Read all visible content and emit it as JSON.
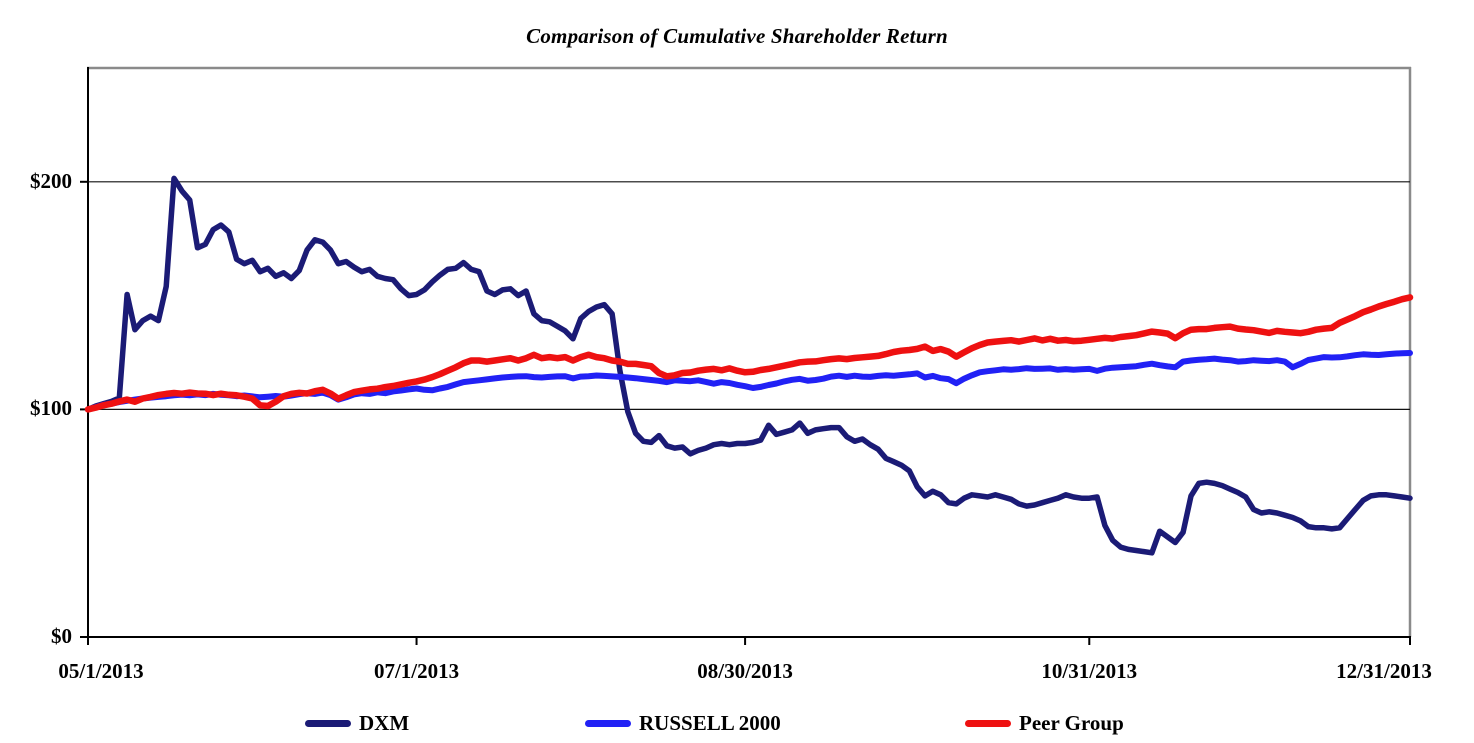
{
  "chart_data": {
    "type": "line",
    "title": "Comparison of Cumulative Shareholder Return",
    "xlabel": "",
    "ylabel": "",
    "grid": "horizontal-only",
    "legend_position": "bottom",
    "y_axis": {
      "min": 0,
      "max": 250,
      "gridlines": [
        100,
        200
      ],
      "ticks": [
        {
          "value": 200,
          "label": "$200"
        },
        {
          "value": 100,
          "label": "$100"
        },
        {
          "value": 0,
          "label": "$0"
        }
      ]
    },
    "x_axis": {
      "unit": "trading-days",
      "first_day": "05/1/2013",
      "last_day": "12/31/2013",
      "total_points": 170,
      "ticks": [
        {
          "day": 0,
          "label": "05/1/2013"
        },
        {
          "day": 42,
          "label": "07/1/2013"
        },
        {
          "day": 84,
          "label": "08/30/2013"
        },
        {
          "day": 128,
          "label": "10/31/2013"
        },
        {
          "day": 169,
          "label": "12/31/2013"
        }
      ]
    },
    "series": [
      {
        "name": "DXM",
        "color": "#1b1b76",
        "values": [
          100,
          101.5,
          102.5,
          103.5,
          105,
          150.5,
          135,
          139,
          141,
          139,
          154,
          201.5,
          196,
          192,
          171,
          172.5,
          179,
          181,
          178,
          166,
          164,
          165.5,
          160.5,
          162,
          158.5,
          160,
          157.5,
          161,
          170,
          174.5,
          173.5,
          170,
          164,
          165,
          162.5,
          160.5,
          161.5,
          158.5,
          157.5,
          157,
          153,
          150,
          150.5,
          152.5,
          156,
          159,
          161.5,
          162,
          164.5,
          161.5,
          160.5,
          152,
          150.5,
          152.5,
          153,
          150,
          152,
          142,
          139,
          138.5,
          136.5,
          134.5,
          131,
          140,
          143,
          145,
          146,
          142,
          117,
          99,
          89.5,
          86,
          85.5,
          88.5,
          84,
          83,
          83.5,
          80.5,
          82,
          83,
          84.5,
          85,
          84.5,
          85,
          85,
          85.5,
          86.5,
          93,
          89,
          90,
          91,
          94,
          89.5,
          91,
          91.5,
          92,
          92,
          88,
          86,
          87,
          84.5,
          82.5,
          78.5,
          77,
          75.5,
          73,
          66,
          62,
          64,
          62.5,
          59,
          58.5,
          61,
          62.5,
          62,
          61.5,
          62.5,
          61.5,
          60.5,
          58.5,
          57.5,
          58,
          59,
          60,
          61,
          62.5,
          61.5,
          61,
          61,
          61.5,
          49,
          42.5,
          39.5,
          38.5,
          38,
          37.5,
          37,
          46.5,
          44,
          41.5,
          46,
          62,
          67.5,
          68,
          67.5,
          66.5,
          65,
          63.5,
          61.5,
          56,
          54.5,
          55,
          54.5,
          53.5,
          52.5,
          51,
          48.5,
          48,
          48,
          47.5,
          48,
          52,
          56,
          60,
          62,
          62.5,
          62.5,
          62,
          61.5,
          61
        ]
      },
      {
        "name": "RUSSELL 2000",
        "color": "#2121f5",
        "values": [
          100,
          101,
          102,
          102.5,
          103.2,
          103.8,
          104.3,
          104.8,
          105.2,
          105.5,
          105.8,
          106.2,
          106.5,
          106.2,
          106.6,
          106.3,
          106.8,
          106.4,
          106.2,
          105.8,
          106.1,
          105.7,
          105.3,
          105.6,
          105.9,
          105.6,
          106.1,
          106.7,
          107.1,
          106.8,
          107.4,
          106.3,
          104.3,
          105.3,
          106.6,
          107.1,
          106.8,
          107.5,
          107.1,
          107.9,
          108.3,
          108.8,
          109.2,
          108.6,
          108.4,
          109.2,
          109.9,
          111,
          112,
          112.4,
          112.8,
          113.2,
          113.6,
          114,
          114.3,
          114.5,
          114.6,
          114.2,
          114,
          114.3,
          114.5,
          114.6,
          113.6,
          114.4,
          114.6,
          114.9,
          114.7,
          114.5,
          114.3,
          114,
          113.7,
          113.3,
          112.9,
          112.5,
          112,
          112.8,
          112.6,
          112.4,
          112.8,
          112.1,
          111.3,
          112,
          111.6,
          110.8,
          110.2,
          109.4,
          109.9,
          110.7,
          111.4,
          112.3,
          113,
          113.4,
          112.6,
          112.9,
          113.5,
          114.4,
          114.8,
          114.3,
          114.8,
          114.4,
          114.3,
          114.7,
          115,
          114.8,
          115.1,
          115.4,
          115.8,
          114,
          114.7,
          113.7,
          113.3,
          111.5,
          113.5,
          115,
          116.3,
          116.8,
          117.2,
          117.6,
          117.4,
          117.7,
          118.1,
          117.8,
          117.9,
          118,
          117.4,
          117.7,
          117.4,
          117.6,
          117.8,
          116.9,
          117.9,
          118.3,
          118.5,
          118.7,
          119,
          119.6,
          120.1,
          119.4,
          118.9,
          118.5,
          121,
          121.5,
          121.8,
          122,
          122.3,
          121.9,
          121.6,
          121,
          121.2,
          121.6,
          121.4,
          121.2,
          121.6,
          121,
          118.5,
          120,
          121.7,
          122.3,
          123,
          122.8,
          122.9,
          123.3,
          123.8,
          124.2,
          124,
          123.9,
          124.2,
          124.5,
          124.7,
          124.8
        ]
      },
      {
        "name": "Peer Group",
        "color": "#ee1111",
        "values": [
          100,
          100.8,
          101.8,
          102.5,
          103.5,
          104.3,
          103.4,
          104.8,
          105.5,
          106.3,
          106.8,
          107.2,
          106.9,
          107.4,
          107,
          106.9,
          106.3,
          106.9,
          106.4,
          106.2,
          105.6,
          104.8,
          101.8,
          101.5,
          103.4,
          105.8,
          106.8,
          107.3,
          107,
          108,
          108.6,
          107,
          104.7,
          106.2,
          107.6,
          108.2,
          108.8,
          109.1,
          109.8,
          110.3,
          111,
          111.7,
          112.3,
          113.1,
          114.2,
          115.5,
          117,
          118.5,
          120.3,
          121.5,
          121.5,
          121,
          121.5,
          122,
          122.5,
          121.5,
          122.5,
          124,
          122.5,
          123,
          122.5,
          123,
          121.5,
          123,
          124,
          123,
          122.5,
          121.5,
          121,
          120,
          120,
          119.5,
          119,
          116,
          114.5,
          115,
          116,
          116.2,
          117,
          117.5,
          117.8,
          117.2,
          118,
          117,
          116.3,
          116.5,
          117.3,
          117.8,
          118.5,
          119.2,
          119.9,
          120.7,
          121,
          121.1,
          121.6,
          122.1,
          122.4,
          122.1,
          122.6,
          122.9,
          123.2,
          123.5,
          124.3,
          125.2,
          125.8,
          126.1,
          126.6,
          127.6,
          125.7,
          126.5,
          125.4,
          123.2,
          125.1,
          126.9,
          128.3,
          129.4,
          129.8,
          130.1,
          130.4,
          129.8,
          130.5,
          131.2,
          130.3,
          131,
          130.2,
          130.5,
          130,
          130.2,
          130.6,
          131,
          131.4,
          131.1,
          131.8,
          132.2,
          132.6,
          133.4,
          134.2,
          133.8,
          133.3,
          131.3,
          133.5,
          135,
          135.3,
          135.3,
          135.8,
          136.1,
          136.4,
          135.5,
          135.1,
          134.8,
          134.2,
          133.6,
          134.5,
          134.1,
          133.8,
          133.5,
          134.1,
          135,
          135.5,
          135.8,
          138,
          139.5,
          141,
          142.7,
          143.9,
          145.2,
          146.3,
          147.3,
          148.4,
          149.2
        ]
      }
    ]
  }
}
